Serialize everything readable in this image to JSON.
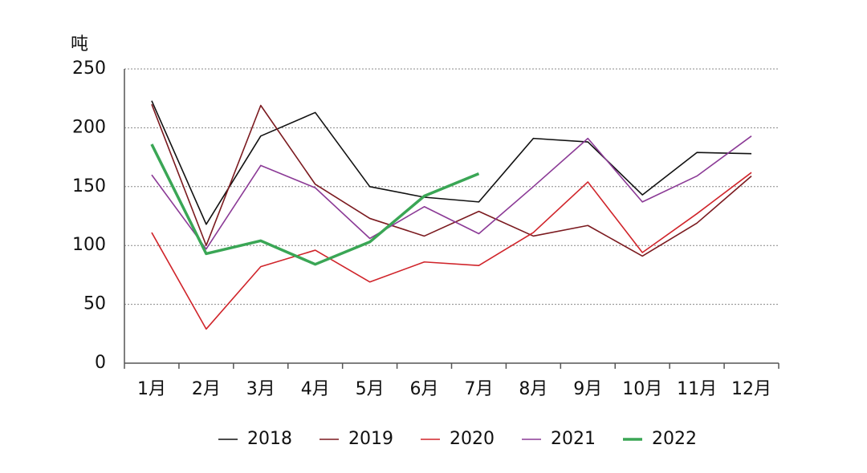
{
  "chart_data": {
    "type": "line",
    "y_label": "吨",
    "categories": [
      "1月",
      "2月",
      "3月",
      "4月",
      "5月",
      "6月",
      "7月",
      "8月",
      "9月",
      "10月",
      "11月",
      "12月"
    ],
    "series": [
      {
        "name": "2018",
        "color": "#111111",
        "values": [
          223,
          118,
          193,
          213,
          150,
          141,
          137,
          191,
          188,
          143,
          179,
          178
        ]
      },
      {
        "name": "2019",
        "color": "#7b1a1f",
        "values": [
          220,
          100,
          219,
          152,
          123,
          108,
          129,
          108,
          117,
          91,
          119,
          159
        ]
      },
      {
        "name": "2020",
        "color": "#d0242a",
        "values": [
          111,
          29,
          82,
          96,
          69,
          86,
          83,
          111,
          154,
          94,
          127,
          162
        ]
      },
      {
        "name": "2021",
        "color": "#8b3a96",
        "values": [
          160,
          97,
          168,
          149,
          106,
          133,
          110,
          150,
          191,
          137,
          159,
          193
        ]
      },
      {
        "name": "2022",
        "color": "#3aa655",
        "values": [
          186,
          93,
          104,
          84,
          103,
          142,
          161,
          null,
          null,
          null,
          null,
          null
        ]
      }
    ],
    "ylim": [
      0,
      250
    ],
    "yticks": [
      0,
      50,
      100,
      150,
      200,
      250
    ],
    "grid": true,
    "legend": "bottom"
  }
}
